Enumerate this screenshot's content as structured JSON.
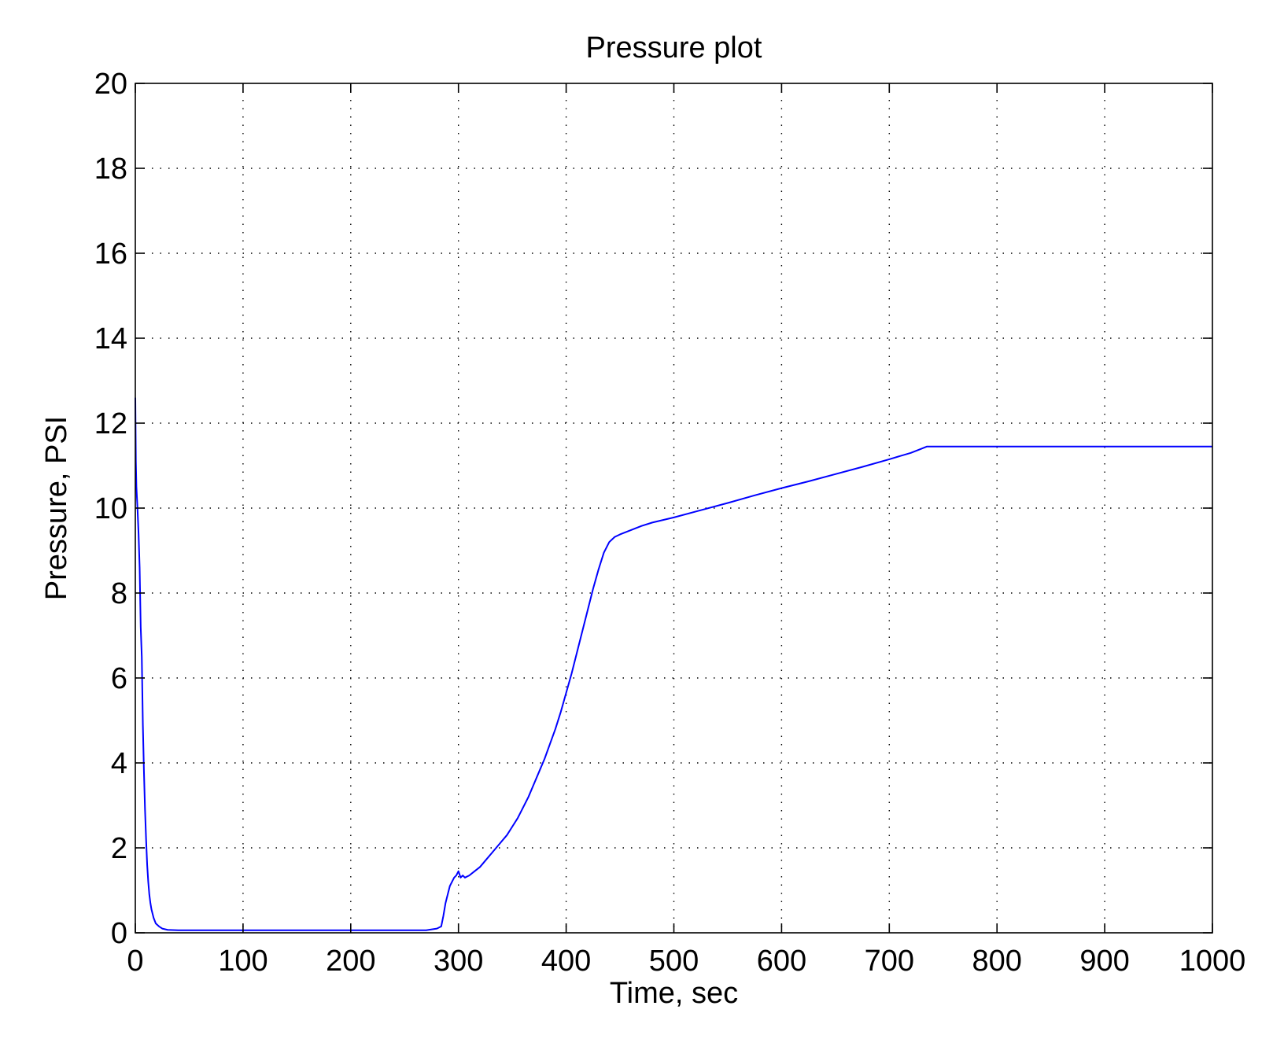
{
  "chart_data": {
    "type": "line",
    "title": "Pressure plot",
    "xlabel": "Time, sec",
    "ylabel": "Pressure, PSI",
    "xlim": [
      0,
      1000
    ],
    "ylim": [
      0,
      20
    ],
    "xticks": [
      0,
      100,
      200,
      300,
      400,
      500,
      600,
      700,
      800,
      900,
      1000
    ],
    "yticks": [
      0,
      2,
      4,
      6,
      8,
      10,
      12,
      14,
      16,
      18,
      20
    ],
    "grid": true,
    "grid_style": "dotted",
    "legend": "none",
    "series": [
      {
        "color": "#0000ff",
        "x": [
          0,
          0.5,
          1,
          2,
          3,
          4,
          5,
          6,
          7,
          8,
          9,
          10,
          11,
          12,
          13,
          14,
          15,
          17,
          19,
          22,
          25,
          30,
          40,
          60,
          100,
          150,
          200,
          250,
          270,
          280,
          284,
          286,
          288,
          290,
          292,
          294,
          296,
          298,
          300,
          302,
          304,
          306,
          310,
          315,
          320,
          325,
          330,
          335,
          340,
          345,
          350,
          355,
          360,
          365,
          370,
          375,
          380,
          385,
          390,
          395,
          400,
          405,
          410,
          415,
          420,
          425,
          430,
          435,
          440,
          445,
          450,
          460,
          470,
          480,
          490,
          500,
          525,
          550,
          575,
          600,
          625,
          650,
          675,
          700,
          720,
          730,
          735,
          750,
          800,
          900,
          1000
        ],
        "y": [
          12.6,
          11.1,
          10.5,
          10.0,
          9.4,
          8.6,
          7.2,
          6.5,
          4.9,
          3.8,
          2.9,
          2.2,
          1.6,
          1.2,
          0.9,
          0.7,
          0.55,
          0.35,
          0.22,
          0.15,
          0.1,
          0.07,
          0.06,
          0.06,
          0.06,
          0.06,
          0.06,
          0.06,
          0.06,
          0.1,
          0.15,
          0.4,
          0.7,
          0.9,
          1.1,
          1.2,
          1.3,
          1.35,
          1.45,
          1.3,
          1.35,
          1.3,
          1.35,
          1.45,
          1.55,
          1.7,
          1.85,
          2.0,
          2.15,
          2.3,
          2.5,
          2.7,
          2.95,
          3.2,
          3.5,
          3.8,
          4.1,
          4.45,
          4.8,
          5.2,
          5.65,
          6.1,
          6.6,
          7.1,
          7.6,
          8.1,
          8.55,
          8.95,
          9.2,
          9.32,
          9.38,
          9.48,
          9.58,
          9.66,
          9.72,
          9.78,
          9.95,
          10.12,
          10.3,
          10.47,
          10.63,
          10.8,
          10.97,
          11.15,
          11.3,
          11.4,
          11.45,
          11.45,
          11.45,
          11.45,
          11.45
        ]
      }
    ]
  }
}
